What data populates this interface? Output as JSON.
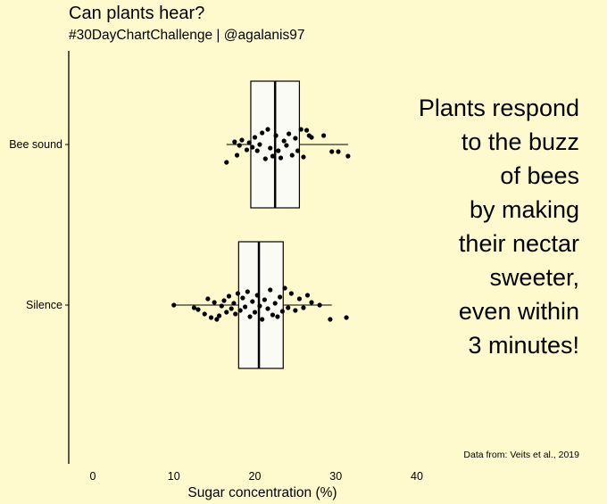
{
  "title": "Can plants hear?",
  "subtitle": "#30DayChartChallenge | @agalanis97",
  "annotation_lines": [
    "Plants respond",
    "to the buzz",
    "of bees",
    "by making",
    "their nectar",
    "sweeter,",
    "even within",
    "3 minutes!"
  ],
  "caption": "Data from: Veits et al., 2019",
  "chart_data": {
    "type": "boxplot",
    "title": "Can plants hear?",
    "subtitle": "#30DayChartChallenge | @agalanis97",
    "xlabel": "Sugar concentration (%)",
    "ylabel": "",
    "xlim": [
      -3,
      40
    ],
    "xticks": [
      0,
      10,
      20,
      30,
      40
    ],
    "categories": [
      "Bee sound",
      "Silence"
    ],
    "boxes": [
      {
        "name": "Bee sound",
        "whisker_low": 16.5,
        "q1": 19.5,
        "median": 22.5,
        "q3": 25.5,
        "whisker_high": 31.5
      },
      {
        "name": "Silence",
        "whisker_low": 10,
        "q1": 18,
        "median": 20.5,
        "q3": 23.5,
        "whisker_high": 29.5
      }
    ],
    "points": [
      {
        "category": "Bee sound",
        "x": 17.5,
        "jitter": -0.03
      },
      {
        "category": "Bee sound",
        "x": 17.8,
        "jitter": 0.12
      },
      {
        "category": "Bee sound",
        "x": 18.1,
        "jitter": 0.01
      },
      {
        "category": "Bee sound",
        "x": 18.4,
        "jitter": -0.05
      },
      {
        "category": "Bee sound",
        "x": 16.5,
        "jitter": 0.2
      },
      {
        "category": "Bee sound",
        "x": 19.0,
        "jitter": 0.06
      },
      {
        "category": "Bee sound",
        "x": 19.3,
        "jitter": -0.02
      },
      {
        "category": "Bee sound",
        "x": 19.7,
        "jitter": 0.03
      },
      {
        "category": "Bee sound",
        "x": 20.0,
        "jitter": -0.08
      },
      {
        "category": "Bee sound",
        "x": 20.3,
        "jitter": 0.07
      },
      {
        "category": "Bee sound",
        "x": 20.6,
        "jitter": 0.0
      },
      {
        "category": "Bee sound",
        "x": 20.9,
        "jitter": -0.13
      },
      {
        "category": "Bee sound",
        "x": 21.3,
        "jitter": 0.16
      },
      {
        "category": "Bee sound",
        "x": 21.6,
        "jitter": -0.17
      },
      {
        "category": "Bee sound",
        "x": 21.9,
        "jitter": 0.04
      },
      {
        "category": "Bee sound",
        "x": 22.2,
        "jitter": 0.13
      },
      {
        "category": "Bee sound",
        "x": 22.6,
        "jitter": -0.1
      },
      {
        "category": "Bee sound",
        "x": 22.9,
        "jitter": 0.07
      },
      {
        "category": "Bee sound",
        "x": 23.2,
        "jitter": 0.15
      },
      {
        "category": "Bee sound",
        "x": 23.6,
        "jitter": -0.04
      },
      {
        "category": "Bee sound",
        "x": 23.9,
        "jitter": 0.01
      },
      {
        "category": "Bee sound",
        "x": 24.2,
        "jitter": -0.12
      },
      {
        "category": "Bee sound",
        "x": 24.6,
        "jitter": 0.12
      },
      {
        "category": "Bee sound",
        "x": 25.0,
        "jitter": -0.07
      },
      {
        "category": "Bee sound",
        "x": 25.3,
        "jitter": 0.07
      },
      {
        "category": "Bee sound",
        "x": 25.7,
        "jitter": -0.17
      },
      {
        "category": "Bee sound",
        "x": 26.0,
        "jitter": 0.14
      },
      {
        "category": "Bee sound",
        "x": 26.4,
        "jitter": -0.16
      },
      {
        "category": "Bee sound",
        "x": 26.7,
        "jitter": -0.1
      },
      {
        "category": "Bee sound",
        "x": 27.0,
        "jitter": -0.08
      },
      {
        "category": "Bee sound",
        "x": 28.5,
        "jitter": -0.1
      },
      {
        "category": "Bee sound",
        "x": 29.5,
        "jitter": 0.08
      },
      {
        "category": "Bee sound",
        "x": 30.3,
        "jitter": 0.08
      },
      {
        "category": "Bee sound",
        "x": 31.5,
        "jitter": 0.13
      },
      {
        "category": "Silence",
        "x": 10.0,
        "jitter": 0.0
      },
      {
        "category": "Silence",
        "x": 12.5,
        "jitter": 0.03
      },
      {
        "category": "Silence",
        "x": 13.0,
        "jitter": 0.05
      },
      {
        "category": "Silence",
        "x": 13.8,
        "jitter": 0.1
      },
      {
        "category": "Silence",
        "x": 14.2,
        "jitter": -0.07
      },
      {
        "category": "Silence",
        "x": 14.6,
        "jitter": 0.14
      },
      {
        "category": "Silence",
        "x": 15.0,
        "jitter": -0.03
      },
      {
        "category": "Silence",
        "x": 15.3,
        "jitter": 0.16
      },
      {
        "category": "Silence",
        "x": 15.6,
        "jitter": 0.12
      },
      {
        "category": "Silence",
        "x": 15.9,
        "jitter": 0.01
      },
      {
        "category": "Silence",
        "x": 16.2,
        "jitter": -0.05
      },
      {
        "category": "Silence",
        "x": 16.5,
        "jitter": 0.08
      },
      {
        "category": "Silence",
        "x": 16.8,
        "jitter": -0.1
      },
      {
        "category": "Silence",
        "x": 17.1,
        "jitter": 0.04
      },
      {
        "category": "Silence",
        "x": 17.4,
        "jitter": -0.02
      },
      {
        "category": "Silence",
        "x": 17.6,
        "jitter": 0.1
      },
      {
        "category": "Silence",
        "x": 17.9,
        "jitter": -0.13
      },
      {
        "category": "Silence",
        "x": 18.2,
        "jitter": 0.06
      },
      {
        "category": "Silence",
        "x": 18.5,
        "jitter": -0.08
      },
      {
        "category": "Silence",
        "x": 18.8,
        "jitter": 0.02
      },
      {
        "category": "Silence",
        "x": 19.1,
        "jitter": -0.15
      },
      {
        "category": "Silence",
        "x": 19.4,
        "jitter": 0.13
      },
      {
        "category": "Silence",
        "x": 19.7,
        "jitter": -0.04
      },
      {
        "category": "Silence",
        "x": 20.0,
        "jitter": 0.08
      },
      {
        "category": "Silence",
        "x": 20.3,
        "jitter": -0.11
      },
      {
        "category": "Silence",
        "x": 20.6,
        "jitter": 0.01
      },
      {
        "category": "Silence",
        "x": 20.9,
        "jitter": 0.16
      },
      {
        "category": "Silence",
        "x": 21.2,
        "jitter": -0.06
      },
      {
        "category": "Silence",
        "x": 21.6,
        "jitter": 0.04
      },
      {
        "category": "Silence",
        "x": 21.9,
        "jitter": -0.17
      },
      {
        "category": "Silence",
        "x": 22.2,
        "jitter": 0.11
      },
      {
        "category": "Silence",
        "x": 22.5,
        "jitter": -0.02
      },
      {
        "category": "Silence",
        "x": 22.8,
        "jitter": 0.13
      },
      {
        "category": "Silence",
        "x": 23.1,
        "jitter": -0.09
      },
      {
        "category": "Silence",
        "x": 23.4,
        "jitter": 0.07
      },
      {
        "category": "Silence",
        "x": 23.7,
        "jitter": -0.19
      },
      {
        "category": "Silence",
        "x": 24.1,
        "jitter": 0.03
      },
      {
        "category": "Silence",
        "x": 24.5,
        "jitter": -0.13
      },
      {
        "category": "Silence",
        "x": 25.0,
        "jitter": 0.06
      },
      {
        "category": "Silence",
        "x": 25.5,
        "jitter": -0.07
      },
      {
        "category": "Silence",
        "x": 26.0,
        "jitter": 0.03
      },
      {
        "category": "Silence",
        "x": 26.5,
        "jitter": -0.11
      },
      {
        "category": "Silence",
        "x": 27.0,
        "jitter": -0.03
      },
      {
        "category": "Silence",
        "x": 28.0,
        "jitter": 0.0
      },
      {
        "category": "Silence",
        "x": 29.3,
        "jitter": 0.16
      },
      {
        "category": "Silence",
        "x": 31.3,
        "jitter": 0.14
      }
    ]
  }
}
